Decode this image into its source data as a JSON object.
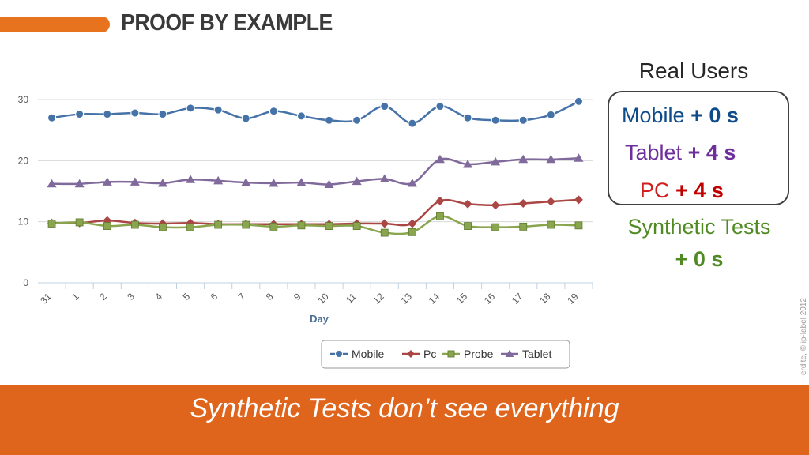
{
  "slide": {
    "title": "PROOF BY EXAMPLE",
    "footer": "Synthetic Tests don’t see everything",
    "copyright": "erdite, © ip-label 2012"
  },
  "real_users": {
    "title": "Real Users",
    "items": [
      {
        "name": "Mobile",
        "delta": "+ 0 s",
        "name_color": "#0e4b8a",
        "delta_color": "#0e4b8a"
      },
      {
        "name": "Tablet",
        "delta": "+ 4 s",
        "name_color": "#6d2f9c",
        "delta_color": "#6d2f9c"
      },
      {
        "name": "PC",
        "delta": "+ 4 s",
        "name_color": "#d11e1e",
        "delta_color": "#c00000"
      }
    ]
  },
  "synthetic": {
    "name": "Synthetic Tests",
    "delta": "+ 0 s",
    "color": "#4f8a23"
  },
  "colors": {
    "accent": "#e0651c",
    "title_bar": "#e8731f"
  },
  "chart_data": {
    "type": "line",
    "xlabel": "Day",
    "ylabel": "",
    "ylim": [
      0,
      30
    ],
    "yticks": [
      0,
      10,
      20,
      30
    ],
    "grid": "horizontal",
    "legend_position": "bottom",
    "categories": [
      "31",
      "1",
      "2",
      "3",
      "4",
      "5",
      "6",
      "7",
      "8",
      "9",
      "10",
      "11",
      "12",
      "13",
      "14",
      "15",
      "16",
      "17",
      "18",
      "19"
    ],
    "series": [
      {
        "name": "Mobile",
        "color": "#4572a7",
        "marker": "circle",
        "values": [
          27.0,
          27.6,
          27.6,
          27.8,
          27.6,
          28.6,
          28.3,
          26.9,
          28.1,
          27.3,
          26.6,
          26.6,
          28.9,
          26.1,
          28.9,
          27.0,
          26.6,
          26.6,
          27.5,
          29.7
        ]
      },
      {
        "name": "Pc",
        "color": "#aa4643",
        "marker": "diamond",
        "values": [
          9.8,
          9.8,
          10.2,
          9.8,
          9.7,
          9.8,
          9.6,
          9.6,
          9.6,
          9.6,
          9.6,
          9.7,
          9.7,
          9.7,
          13.4,
          12.9,
          12.7,
          13.0,
          13.3,
          13.6
        ]
      },
      {
        "name": "Probe",
        "color": "#89a54e",
        "marker": "square",
        "values": [
          9.7,
          9.9,
          9.3,
          9.5,
          9.1,
          9.1,
          9.5,
          9.5,
          9.2,
          9.4,
          9.3,
          9.3,
          8.2,
          8.3,
          10.9,
          9.3,
          9.1,
          9.2,
          9.5,
          9.4
        ]
      },
      {
        "name": "Tablet",
        "color": "#80699b",
        "marker": "triangle",
        "values": [
          16.2,
          16.2,
          16.5,
          16.5,
          16.3,
          16.9,
          16.7,
          16.4,
          16.3,
          16.4,
          16.1,
          16.6,
          17.0,
          16.3,
          20.2,
          19.4,
          19.8,
          20.2,
          20.2,
          20.4
        ]
      }
    ]
  }
}
